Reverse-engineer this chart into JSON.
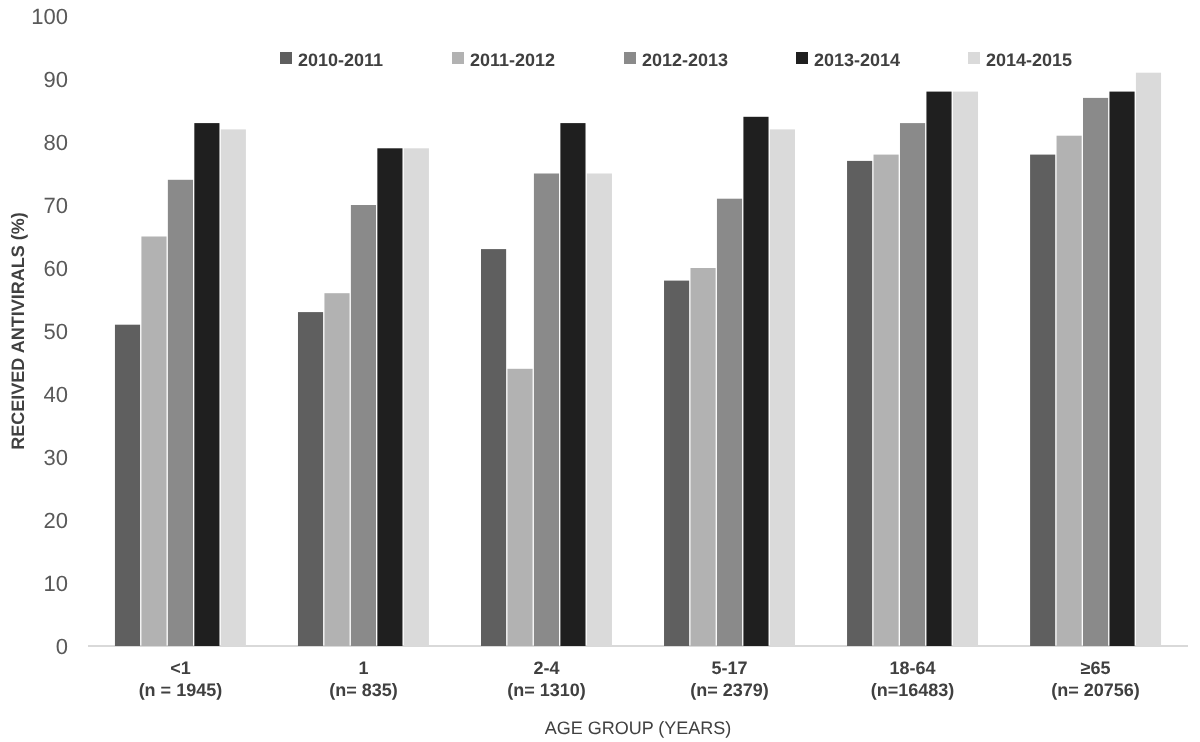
{
  "chart_data": {
    "type": "bar",
    "xlabel": "AGE GROUP (YEARS)",
    "ylabel": "RECEIVED ANTIVIRALS (%)",
    "categories": [
      "<1\n(n = 1945)",
      "1\n(n= 835)",
      "2-4\n(n= 1310)",
      "5-17\n(n= 2379)",
      "18-64\n(n=16483)",
      "≥65\n(n= 20756)"
    ],
    "series": [
      {
        "name": "2010-2011",
        "color": "#5f5f5f",
        "values": [
          51,
          53,
          63,
          58,
          77,
          78
        ]
      },
      {
        "name": "2011-2012",
        "color": "#b2b2b2",
        "values": [
          65,
          56,
          44,
          60,
          78,
          81
        ]
      },
      {
        "name": "2012-2013",
        "color": "#8a8a8a",
        "values": [
          74,
          70,
          75,
          71,
          83,
          87
        ]
      },
      {
        "name": "2013-2014",
        "color": "#1f1f1f",
        "values": [
          83,
          79,
          83,
          84,
          88,
          88
        ]
      },
      {
        "name": "2014-2015",
        "color": "#dadada",
        "values": [
          82,
          79,
          75,
          82,
          88,
          91
        ]
      }
    ],
    "ylim": [
      0,
      100
    ],
    "yticks": [
      0,
      10,
      20,
      30,
      40,
      50,
      60,
      70,
      80,
      90,
      100
    ],
    "legend": "top",
    "grid": false
  }
}
